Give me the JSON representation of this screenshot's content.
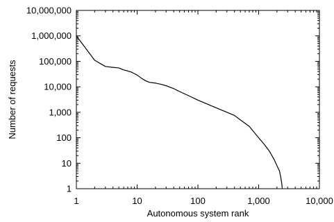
{
  "chart_data": {
    "type": "line",
    "title": "",
    "xlabel": "Autonomous system rank",
    "ylabel": "Number of requests",
    "xscale": "log",
    "yscale": "log",
    "xlim": [
      1,
      10000
    ],
    "ylim": [
      1,
      10000000
    ],
    "grid": false,
    "legend": "none",
    "x_ticks": [
      {
        "value": 1,
        "label": "1"
      },
      {
        "value": 10,
        "label": "10"
      },
      {
        "value": 100,
        "label": "100"
      },
      {
        "value": 1000,
        "label": "1,000"
      },
      {
        "value": 10000,
        "label": "10,000"
      }
    ],
    "y_ticks": [
      {
        "value": 1,
        "label": "1"
      },
      {
        "value": 10,
        "label": "10"
      },
      {
        "value": 100,
        "label": "100"
      },
      {
        "value": 1000,
        "label": "1,000"
      },
      {
        "value": 10000,
        "label": "10,000"
      },
      {
        "value": 100000,
        "label": "100,000"
      },
      {
        "value": 1000000,
        "label": "1,000,000"
      },
      {
        "value": 10000000,
        "label": "10,000,000"
      }
    ],
    "series": [
      {
        "color": "#000000",
        "x": [
          1,
          2,
          3,
          4,
          5,
          6,
          7,
          8,
          9,
          10,
          12,
          14,
          16,
          20,
          25,
          30,
          40,
          50,
          70,
          100,
          150,
          200,
          300,
          400,
          500,
          700,
          1000,
          1200,
          1500,
          1800,
          2000,
          2200,
          2300,
          2400,
          2450
        ],
        "y": [
          1000000,
          110000,
          63000,
          58000,
          55000,
          46000,
          42000,
          38000,
          33000,
          29000,
          21000,
          17000,
          15000,
          14000,
          12500,
          11000,
          8500,
          6500,
          4500,
          3000,
          2000,
          1500,
          1000,
          750,
          500,
          280,
          100,
          60,
          30,
          14,
          8,
          5,
          3,
          1.6,
          1
        ]
      }
    ]
  }
}
